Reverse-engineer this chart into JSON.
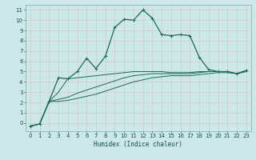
{
  "xlabel": "Humidex (Indice chaleur)",
  "bg_color": "#cce8e8",
  "grid_color": "#b8d8d8",
  "line_color": "#1a6b5a",
  "xlim": [
    -0.5,
    23.5
  ],
  "ylim": [
    -0.8,
    11.5
  ],
  "xticks": [
    0,
    1,
    2,
    3,
    4,
    5,
    6,
    7,
    8,
    9,
    10,
    11,
    12,
    13,
    14,
    15,
    16,
    17,
    18,
    19,
    20,
    21,
    22,
    23
  ],
  "yticks": [
    0,
    1,
    2,
    3,
    4,
    5,
    6,
    7,
    8,
    9,
    10,
    11
  ],
  "curve1_x": [
    0,
    1,
    2,
    3,
    4,
    5,
    6,
    7,
    8,
    9,
    10,
    11,
    12,
    13,
    14,
    15,
    16,
    17,
    18,
    19,
    20,
    21,
    22,
    23
  ],
  "curve1_y": [
    -0.3,
    -0.1,
    2.1,
    4.4,
    4.3,
    5.0,
    6.3,
    5.3,
    6.5,
    9.3,
    10.1,
    10.0,
    11.0,
    10.2,
    8.6,
    8.5,
    8.6,
    8.5,
    6.4,
    5.2,
    5.0,
    5.0,
    4.8,
    5.1
  ],
  "curve2_x": [
    0,
    1,
    2,
    3,
    4,
    5,
    6,
    7,
    8,
    9,
    10,
    11,
    12,
    13,
    14,
    15,
    16,
    17,
    18,
    19,
    20,
    21,
    22,
    23
  ],
  "curve2_y": [
    -0.3,
    -0.1,
    2.1,
    3.0,
    4.3,
    4.4,
    4.5,
    4.6,
    4.7,
    4.8,
    4.9,
    5.0,
    5.0,
    5.0,
    5.0,
    4.9,
    4.9,
    4.9,
    5.0,
    5.0,
    5.0,
    5.0,
    4.8,
    5.1
  ],
  "curve3_x": [
    0,
    1,
    2,
    3,
    4,
    5,
    6,
    7,
    8,
    9,
    10,
    11,
    12,
    13,
    14,
    15,
    16,
    17,
    18,
    19,
    20,
    21,
    22,
    23
  ],
  "curve3_y": [
    -0.3,
    -0.1,
    2.1,
    2.3,
    2.5,
    2.9,
    3.2,
    3.5,
    3.8,
    4.1,
    4.4,
    4.6,
    4.7,
    4.8,
    4.8,
    4.8,
    4.8,
    4.8,
    4.9,
    5.0,
    5.0,
    5.0,
    4.8,
    5.1
  ],
  "curve4_x": [
    0,
    1,
    2,
    3,
    4,
    5,
    6,
    7,
    8,
    9,
    10,
    11,
    12,
    13,
    14,
    15,
    16,
    17,
    18,
    19,
    20,
    21,
    22,
    23
  ],
  "curve4_y": [
    -0.3,
    -0.1,
    2.1,
    2.1,
    2.2,
    2.4,
    2.6,
    2.8,
    3.1,
    3.4,
    3.7,
    4.0,
    4.2,
    4.4,
    4.5,
    4.6,
    4.6,
    4.6,
    4.7,
    4.8,
    4.9,
    4.9,
    4.8,
    5.0
  ]
}
